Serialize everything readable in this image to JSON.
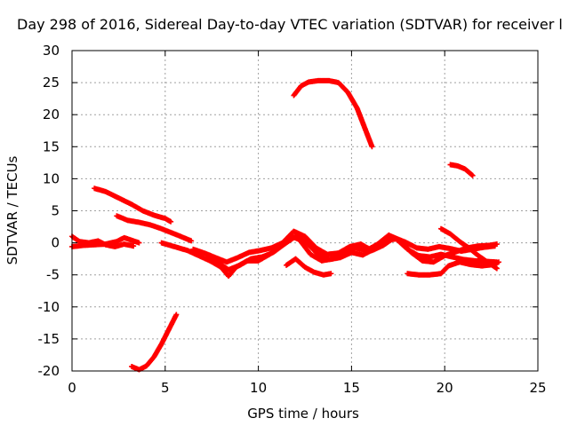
{
  "chart_data": {
    "type": "scatter",
    "title": "Day 298 of 2016, Sidereal Day-to-day VTEC variation (SDTVAR) for receiver l",
    "xlabel": "GPS time / hours",
    "ylabel": "SDTVAR / TECUs",
    "xlim": [
      0,
      25
    ],
    "ylim": [
      -20,
      30
    ],
    "xticks": [
      "0",
      "5",
      "10",
      "15",
      "20",
      "25"
    ],
    "yticks": [
      "30",
      "25",
      "20",
      "15",
      "10",
      "5",
      "0",
      "-5",
      "-10",
      "-15",
      "-20"
    ],
    "grid": true,
    "legend": "none",
    "marker_color": "#ff0000",
    "series": [
      {
        "values": [
          [
            11.9,
            23.0
          ],
          [
            12.3,
            24.5
          ],
          [
            12.7,
            25.1
          ],
          [
            13.2,
            25.3
          ],
          [
            13.8,
            25.3
          ],
          [
            14.3,
            25.0
          ],
          [
            14.8,
            23.5
          ],
          [
            15.3,
            21.0
          ],
          [
            15.7,
            18.0
          ],
          [
            16.1,
            15.0
          ]
        ]
      },
      {
        "values": [
          [
            20.3,
            12.2
          ],
          [
            20.7,
            12.0
          ],
          [
            21.1,
            11.5
          ],
          [
            21.5,
            10.5
          ]
        ]
      },
      {
        "values": [
          [
            3.2,
            -19.3
          ],
          [
            3.6,
            -19.8
          ],
          [
            4.0,
            -19.2
          ],
          [
            4.4,
            -17.8
          ],
          [
            4.8,
            -15.8
          ],
          [
            5.2,
            -13.5
          ],
          [
            5.6,
            -11.2
          ]
        ]
      },
      {
        "values": [
          [
            1.2,
            8.5
          ],
          [
            1.8,
            8.0
          ],
          [
            2.5,
            7.0
          ],
          [
            3.2,
            6.0
          ],
          [
            3.8,
            5.0
          ],
          [
            4.4,
            4.3
          ],
          [
            5.0,
            3.8
          ],
          [
            5.3,
            3.3
          ]
        ]
      },
      {
        "values": [
          [
            2.4,
            4.2
          ],
          [
            3.0,
            3.5
          ],
          [
            3.6,
            3.2
          ],
          [
            4.2,
            2.8
          ],
          [
            4.8,
            2.2
          ],
          [
            5.4,
            1.5
          ],
          [
            6.0,
            0.8
          ],
          [
            6.4,
            0.3
          ]
        ]
      },
      {
        "values": [
          [
            0.0,
            1.0
          ],
          [
            0.4,
            0.2
          ],
          [
            0.9,
            0.0
          ],
          [
            1.4,
            0.3
          ],
          [
            1.8,
            -0.3
          ],
          [
            2.3,
            -0.6
          ],
          [
            2.8,
            -0.2
          ],
          [
            3.3,
            -0.5
          ]
        ]
      },
      {
        "values": [
          [
            0.0,
            -0.6
          ],
          [
            0.6,
            -0.4
          ],
          [
            1.2,
            -0.3
          ],
          [
            1.8,
            -0.2
          ],
          [
            2.4,
            0.2
          ],
          [
            2.8,
            0.8
          ],
          [
            3.2,
            0.4
          ],
          [
            3.6,
            0.0
          ]
        ]
      },
      {
        "values": [
          [
            4.8,
            0.0
          ],
          [
            5.5,
            -0.6
          ],
          [
            6.2,
            -1.2
          ],
          [
            6.8,
            -2.0
          ],
          [
            7.4,
            -2.8
          ],
          [
            8.0,
            -3.8
          ],
          [
            8.4,
            -5.2
          ],
          [
            8.8,
            -3.8
          ],
          [
            9.4,
            -2.8
          ],
          [
            10.0,
            -2.8
          ],
          [
            10.6,
            -1.8
          ],
          [
            11.2,
            -0.6
          ],
          [
            11.8,
            1.0
          ],
          [
            12.2,
            0.5
          ],
          [
            12.8,
            -1.8
          ],
          [
            13.4,
            -2.8
          ],
          [
            14.0,
            -2.5
          ],
          [
            14.6,
            -1.5
          ],
          [
            15.2,
            -0.8
          ],
          [
            15.8,
            -1.2
          ],
          [
            16.4,
            -0.2
          ],
          [
            17.0,
            1.2
          ],
          [
            17.6,
            0.4
          ],
          [
            18.2,
            -1.5
          ],
          [
            18.8,
            -2.8
          ],
          [
            19.4,
            -3.0
          ],
          [
            20.0,
            -2.0
          ],
          [
            20.6,
            -1.4
          ],
          [
            21.2,
            -0.8
          ],
          [
            21.8,
            -0.5
          ],
          [
            22.4,
            -0.4
          ],
          [
            22.8,
            -0.2
          ]
        ]
      },
      {
        "values": [
          [
            6.5,
            -1.0
          ],
          [
            7.1,
            -1.6
          ],
          [
            7.7,
            -2.3
          ],
          [
            8.3,
            -3.0
          ],
          [
            8.9,
            -2.3
          ],
          [
            9.5,
            -1.5
          ],
          [
            10.1,
            -1.2
          ],
          [
            10.7,
            -0.8
          ],
          [
            11.3,
            0.0
          ],
          [
            11.9,
            1.8
          ],
          [
            12.5,
            1.0
          ],
          [
            13.1,
            -0.8
          ],
          [
            13.7,
            -1.8
          ],
          [
            14.3,
            -1.6
          ],
          [
            14.9,
            -0.6
          ],
          [
            15.5,
            -0.2
          ],
          [
            16.1,
            -1.2
          ],
          [
            16.7,
            -0.4
          ],
          [
            17.3,
            0.8
          ],
          [
            17.9,
            0.1
          ],
          [
            18.5,
            -0.8
          ],
          [
            19.1,
            -1.0
          ],
          [
            19.7,
            -0.6
          ],
          [
            20.3,
            -0.9
          ],
          [
            20.9,
            -1.3
          ],
          [
            21.5,
            -1.0
          ],
          [
            22.1,
            -0.7
          ],
          [
            22.7,
            -0.5
          ]
        ]
      },
      {
        "values": [
          [
            7.2,
            -2.2
          ],
          [
            7.9,
            -3.2
          ],
          [
            8.4,
            -4.2
          ],
          [
            9.0,
            -3.5
          ],
          [
            9.6,
            -2.5
          ],
          [
            10.2,
            -2.2
          ],
          [
            10.8,
            -1.5
          ],
          [
            11.4,
            -0.2
          ],
          [
            12.0,
            1.0
          ],
          [
            12.6,
            0.0
          ],
          [
            13.2,
            -1.8
          ],
          [
            13.8,
            -2.6
          ],
          [
            14.4,
            -2.3
          ],
          [
            15.0,
            -1.5
          ],
          [
            15.6,
            -1.9
          ],
          [
            16.2,
            -1.0
          ],
          [
            16.8,
            0.4
          ],
          [
            17.4,
            0.6
          ],
          [
            18.0,
            -1.0
          ],
          [
            18.6,
            -2.0
          ],
          [
            19.2,
            -2.2
          ],
          [
            19.8,
            -1.8
          ],
          [
            20.4,
            -2.2
          ],
          [
            21.0,
            -2.6
          ],
          [
            21.6,
            -2.8
          ],
          [
            22.2,
            -2.9
          ],
          [
            22.8,
            -3.0
          ]
        ]
      },
      {
        "values": [
          [
            11.5,
            -3.5
          ],
          [
            12.0,
            -2.5
          ],
          [
            12.5,
            -3.8
          ],
          [
            13.0,
            -4.6
          ],
          [
            13.5,
            -5.0
          ],
          [
            13.9,
            -4.8
          ]
        ]
      },
      {
        "values": [
          [
            18.0,
            -4.8
          ],
          [
            18.6,
            -5.0
          ],
          [
            19.2,
            -5.0
          ],
          [
            19.8,
            -4.8
          ],
          [
            20.2,
            -3.6
          ],
          [
            20.8,
            -3.0
          ],
          [
            21.4,
            -3.4
          ],
          [
            22.0,
            -3.6
          ],
          [
            22.6,
            -3.4
          ],
          [
            22.9,
            -3.0
          ]
        ]
      },
      {
        "values": [
          [
            19.8,
            2.2
          ],
          [
            20.3,
            1.4
          ],
          [
            20.8,
            0.2
          ],
          [
            21.3,
            -0.8
          ],
          [
            21.8,
            -2.0
          ],
          [
            22.3,
            -3.0
          ],
          [
            22.8,
            -4.0
          ]
        ]
      }
    ]
  }
}
